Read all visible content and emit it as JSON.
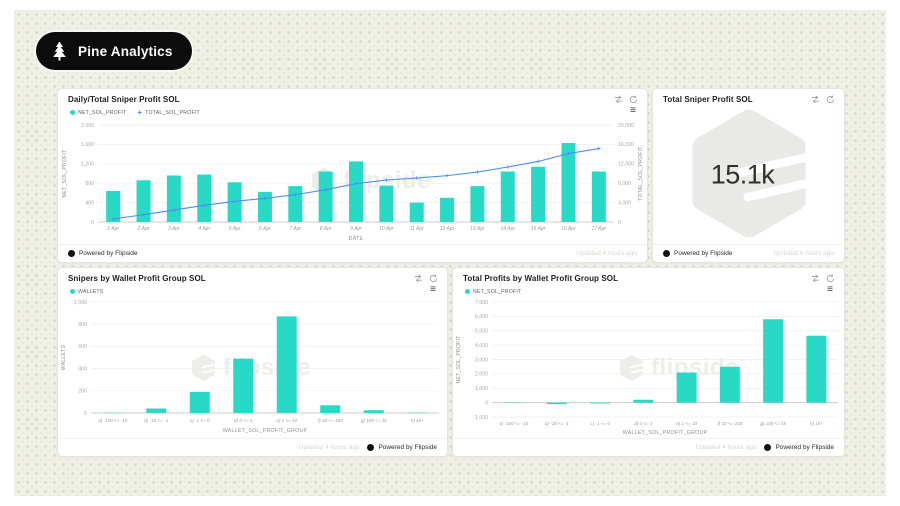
{
  "app": {
    "brand": "Pine Analytics"
  },
  "colors": {
    "background": "#f0efe5",
    "pattern_dot": "#b9d7c4",
    "pill_bg": "#0c0c0c",
    "accent_teal": "#28d9c5",
    "accent_blue": "#4a8df8",
    "watermark_gray": "#ededeb"
  },
  "icons": {
    "menu": "≡",
    "share": "double-arrow-icon",
    "refresh": "circular-arrow-icon",
    "brand": "pine-tree-icon",
    "footer_logo": "flipside-circle-logo"
  },
  "watermark": {
    "text": "flipside"
  },
  "footer": {
    "powered_by": "Powered by Flipside",
    "updated": "Updated 4 hours ago"
  },
  "chart_data": [
    {
      "type": "bar+line",
      "title": "Daily/Total Sniper Profit SOL",
      "xlabel": "DATE",
      "ylabel": "NET_SOL_PROFIT",
      "y2label": "TOTAL_SOL_PROFIT",
      "ylim": [
        0,
        2000
      ],
      "ytick": 400,
      "y2lim": [
        0,
        20000
      ],
      "y2tick": 4000,
      "grid": true,
      "legend_position": "top-left",
      "categories": [
        "1 Apr",
        "2 Apr",
        "3 Apr",
        "4 Apr",
        "5 Apr",
        "6 Apr",
        "7 Apr",
        "8 Apr",
        "9 Apr",
        "10 Apr",
        "11 Apr",
        "12 Apr",
        "13 Apr",
        "14 Apr",
        "15 Apr",
        "16 Apr",
        "17 Apr"
      ],
      "series": [
        {
          "name": "NET_SOL_PROFIT",
          "type": "bar",
          "axis": "left",
          "color": "#28d9c5",
          "values": [
            640,
            860,
            960,
            980,
            820,
            620,
            740,
            1040,
            1250,
            750,
            400,
            500,
            740,
            1040,
            1140,
            1630,
            1040
          ]
        },
        {
          "name": "TOTAL_SOL_PROFIT",
          "type": "line",
          "axis": "right",
          "color": "#4a8df8",
          "values": [
            640,
            1500,
            2460,
            3440,
            4260,
            4880,
            5620,
            6660,
            7910,
            8660,
            9060,
            9560,
            10300,
            11340,
            12480,
            14110,
            15150
          ]
        }
      ]
    },
    {
      "type": "big_number",
      "title": "Total Sniper Profit SOL",
      "value_label": "15.1k"
    },
    {
      "type": "bar",
      "title": "Snipers by Wallet Profit Group SOL",
      "xlabel": "WALLET_SOL_PROFIT_GROUP",
      "ylabel": "WALLETS",
      "ylim": [
        0,
        1000
      ],
      "ytick": 200,
      "grid": true,
      "legend_position": "top-left",
      "categories": [
        "a) -100 <= -10",
        "b) -10 <= -1",
        "c) -1 <= 0",
        "d) 0 <= 1",
        "e) 1 <= 10",
        "f) 10 <= 100",
        "g) 100 <= 1k",
        "h) 1k+"
      ],
      "series": [
        {
          "name": "WALLETS",
          "type": "bar",
          "color": "#28d9c5",
          "values": [
            2,
            40,
            190,
            490,
            870,
            70,
            25,
            3
          ]
        }
      ]
    },
    {
      "type": "bar",
      "title": "Total Profits by Wallet Profit Group SOL",
      "xlabel": "WALLET_SOL_PROFIT_GROUP",
      "ylabel": "NET_SOL_PROFIT",
      "ylim": [
        -1000,
        7000
      ],
      "ytick": 1000,
      "grid": true,
      "legend_position": "top-left",
      "categories": [
        "a) -100 <= -10",
        "b) -10 <= -1",
        "c) -1 <= 0",
        "d) 0 <= 1",
        "e) 1 <= 10",
        "f) 10 <= 100",
        "g) 100 <= 1k",
        "h) 1k+"
      ],
      "series": [
        {
          "name": "NET_SOL_PROFIT",
          "type": "bar",
          "color": "#28d9c5",
          "values": [
            -30,
            -100,
            -60,
            200,
            2100,
            2500,
            5800,
            4650
          ]
        }
      ]
    }
  ]
}
